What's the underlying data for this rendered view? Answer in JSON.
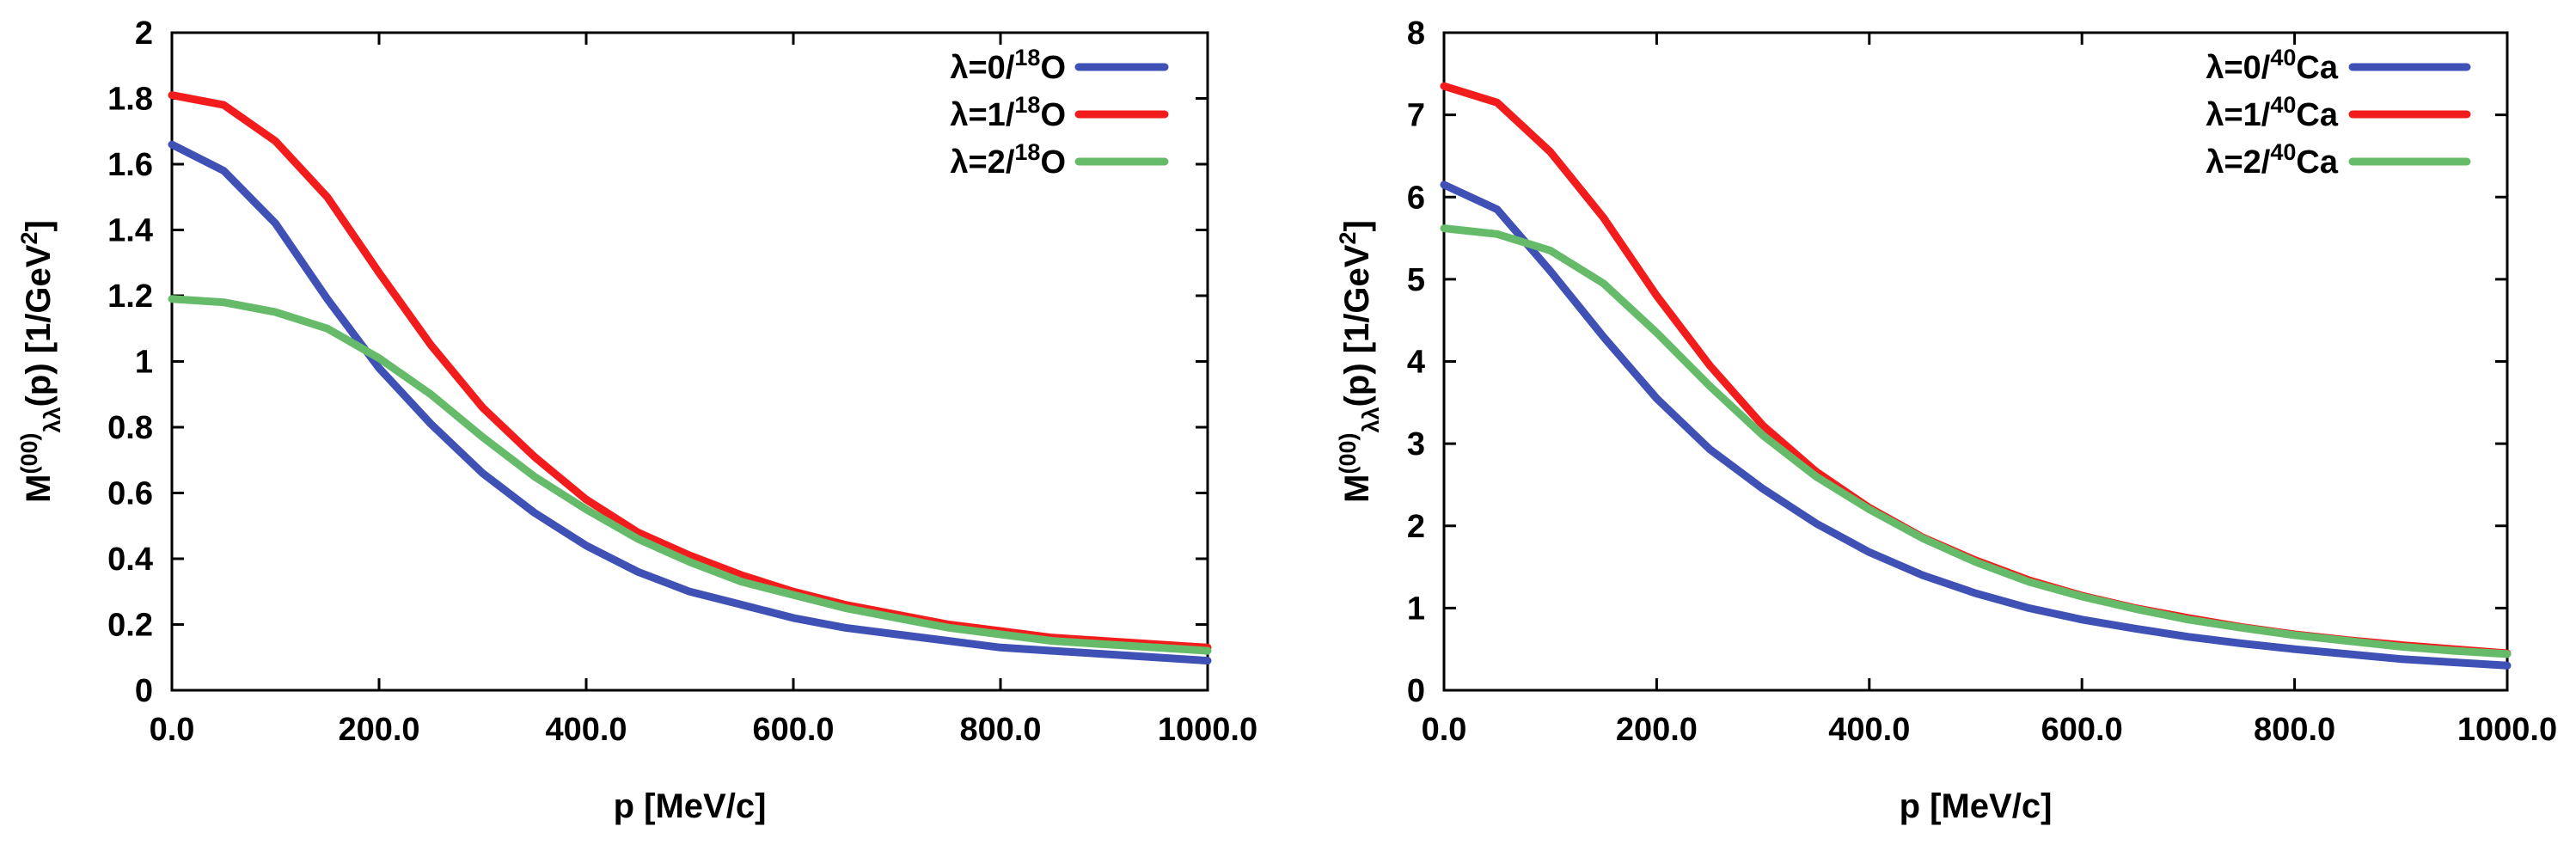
{
  "colors": {
    "lambda0": "#3f51b5",
    "lambda1": "#f21c1c",
    "lambda2": "#66bb6a"
  },
  "chart_data": [
    {
      "type": "line",
      "title": "",
      "xlabel": "p [MeV/c]",
      "ylabel": {
        "main": "M",
        "sup": "(00)",
        "sub": "λλ",
        "rest": "(p) [1/GeV",
        "unit_sup": "2",
        "close": "]"
      },
      "xlim": [
        0,
        1000
      ],
      "ylim": [
        0,
        2
      ],
      "xticks": [
        0,
        200,
        400,
        600,
        800,
        1000
      ],
      "xtick_labels": [
        "0.0",
        "200.0",
        "400.0",
        "600.0",
        "800.0",
        "1000.0"
      ],
      "yticks": [
        0,
        0.2,
        0.4,
        0.6,
        0.8,
        1,
        1.2,
        1.4,
        1.6,
        1.8,
        2
      ],
      "ytick_labels": [
        "0",
        "0.2",
        "0.4",
        "0.6",
        "0.8",
        "1",
        "1.2",
        "1.4",
        "1.6",
        "1.8",
        "2"
      ],
      "legend_position": "top-right",
      "x": [
        0,
        50,
        100,
        150,
        200,
        250,
        300,
        350,
        400,
        450,
        500,
        550,
        600,
        650,
        700,
        750,
        800,
        850,
        900,
        950,
        1000
      ],
      "series": [
        {
          "name": "λ=0/",
          "nucleus_sup": "18",
          "nucleus": "O",
          "color_key": "lambda0",
          "values": [
            1.66,
            1.58,
            1.42,
            1.19,
            0.98,
            0.81,
            0.66,
            0.54,
            0.44,
            0.36,
            0.3,
            0.26,
            0.22,
            0.19,
            0.17,
            0.15,
            0.13,
            0.12,
            0.11,
            0.1,
            0.09
          ]
        },
        {
          "name": "λ=1/",
          "nucleus_sup": "18",
          "nucleus": "O",
          "color_key": "lambda1",
          "values": [
            1.81,
            1.78,
            1.67,
            1.5,
            1.27,
            1.05,
            0.86,
            0.71,
            0.58,
            0.48,
            0.41,
            0.35,
            0.3,
            0.26,
            0.23,
            0.2,
            0.18,
            0.16,
            0.15,
            0.14,
            0.13
          ]
        },
        {
          "name": "λ=2/",
          "nucleus_sup": "18",
          "nucleus": "O",
          "color_key": "lambda2",
          "values": [
            1.19,
            1.18,
            1.15,
            1.1,
            1.01,
            0.9,
            0.77,
            0.65,
            0.55,
            0.46,
            0.39,
            0.33,
            0.29,
            0.25,
            0.22,
            0.19,
            0.17,
            0.15,
            0.14,
            0.13,
            0.12
          ]
        }
      ]
    },
    {
      "type": "line",
      "title": "",
      "xlabel": "p [MeV/c]",
      "ylabel": {
        "main": "M",
        "sup": "(00)",
        "sub": "λλ",
        "rest": "(p) [1/GeV",
        "unit_sup": "2",
        "close": "]"
      },
      "xlim": [
        0,
        1000
      ],
      "ylim": [
        0,
        8
      ],
      "xticks": [
        0,
        200,
        400,
        600,
        800,
        1000
      ],
      "xtick_labels": [
        "0.0",
        "200.0",
        "400.0",
        "600.0",
        "800.0",
        "1000.0"
      ],
      "yticks": [
        0,
        1,
        2,
        3,
        4,
        5,
        6,
        7,
        8
      ],
      "ytick_labels": [
        "0",
        "1",
        "2",
        "3",
        "4",
        "5",
        "6",
        "7",
        "8"
      ],
      "legend_position": "top-right",
      "x": [
        0,
        50,
        100,
        150,
        200,
        250,
        300,
        350,
        400,
        450,
        500,
        550,
        600,
        650,
        700,
        750,
        800,
        850,
        900,
        950,
        1000
      ],
      "series": [
        {
          "name": "λ=0/",
          "nucleus_sup": "40",
          "nucleus": "Ca",
          "color_key": "lambda0",
          "values": [
            6.15,
            5.85,
            5.1,
            4.3,
            3.55,
            2.93,
            2.45,
            2.03,
            1.68,
            1.4,
            1.18,
            1.0,
            0.86,
            0.75,
            0.65,
            0.57,
            0.5,
            0.44,
            0.38,
            0.34,
            0.3
          ]
        },
        {
          "name": "λ=1/",
          "nucleus_sup": "40",
          "nucleus": "Ca",
          "color_key": "lambda1",
          "values": [
            7.35,
            7.15,
            6.55,
            5.75,
            4.8,
            3.95,
            3.22,
            2.66,
            2.22,
            1.86,
            1.58,
            1.34,
            1.15,
            1.0,
            0.88,
            0.77,
            0.68,
            0.61,
            0.55,
            0.5,
            0.45
          ]
        },
        {
          "name": "λ=2/",
          "nucleus_sup": "40",
          "nucleus": "Ca",
          "color_key": "lambda2",
          "values": [
            5.62,
            5.55,
            5.35,
            4.95,
            4.35,
            3.7,
            3.1,
            2.6,
            2.2,
            1.85,
            1.56,
            1.32,
            1.14,
            0.99,
            0.86,
            0.76,
            0.67,
            0.6,
            0.53,
            0.48,
            0.44
          ]
        }
      ]
    }
  ]
}
